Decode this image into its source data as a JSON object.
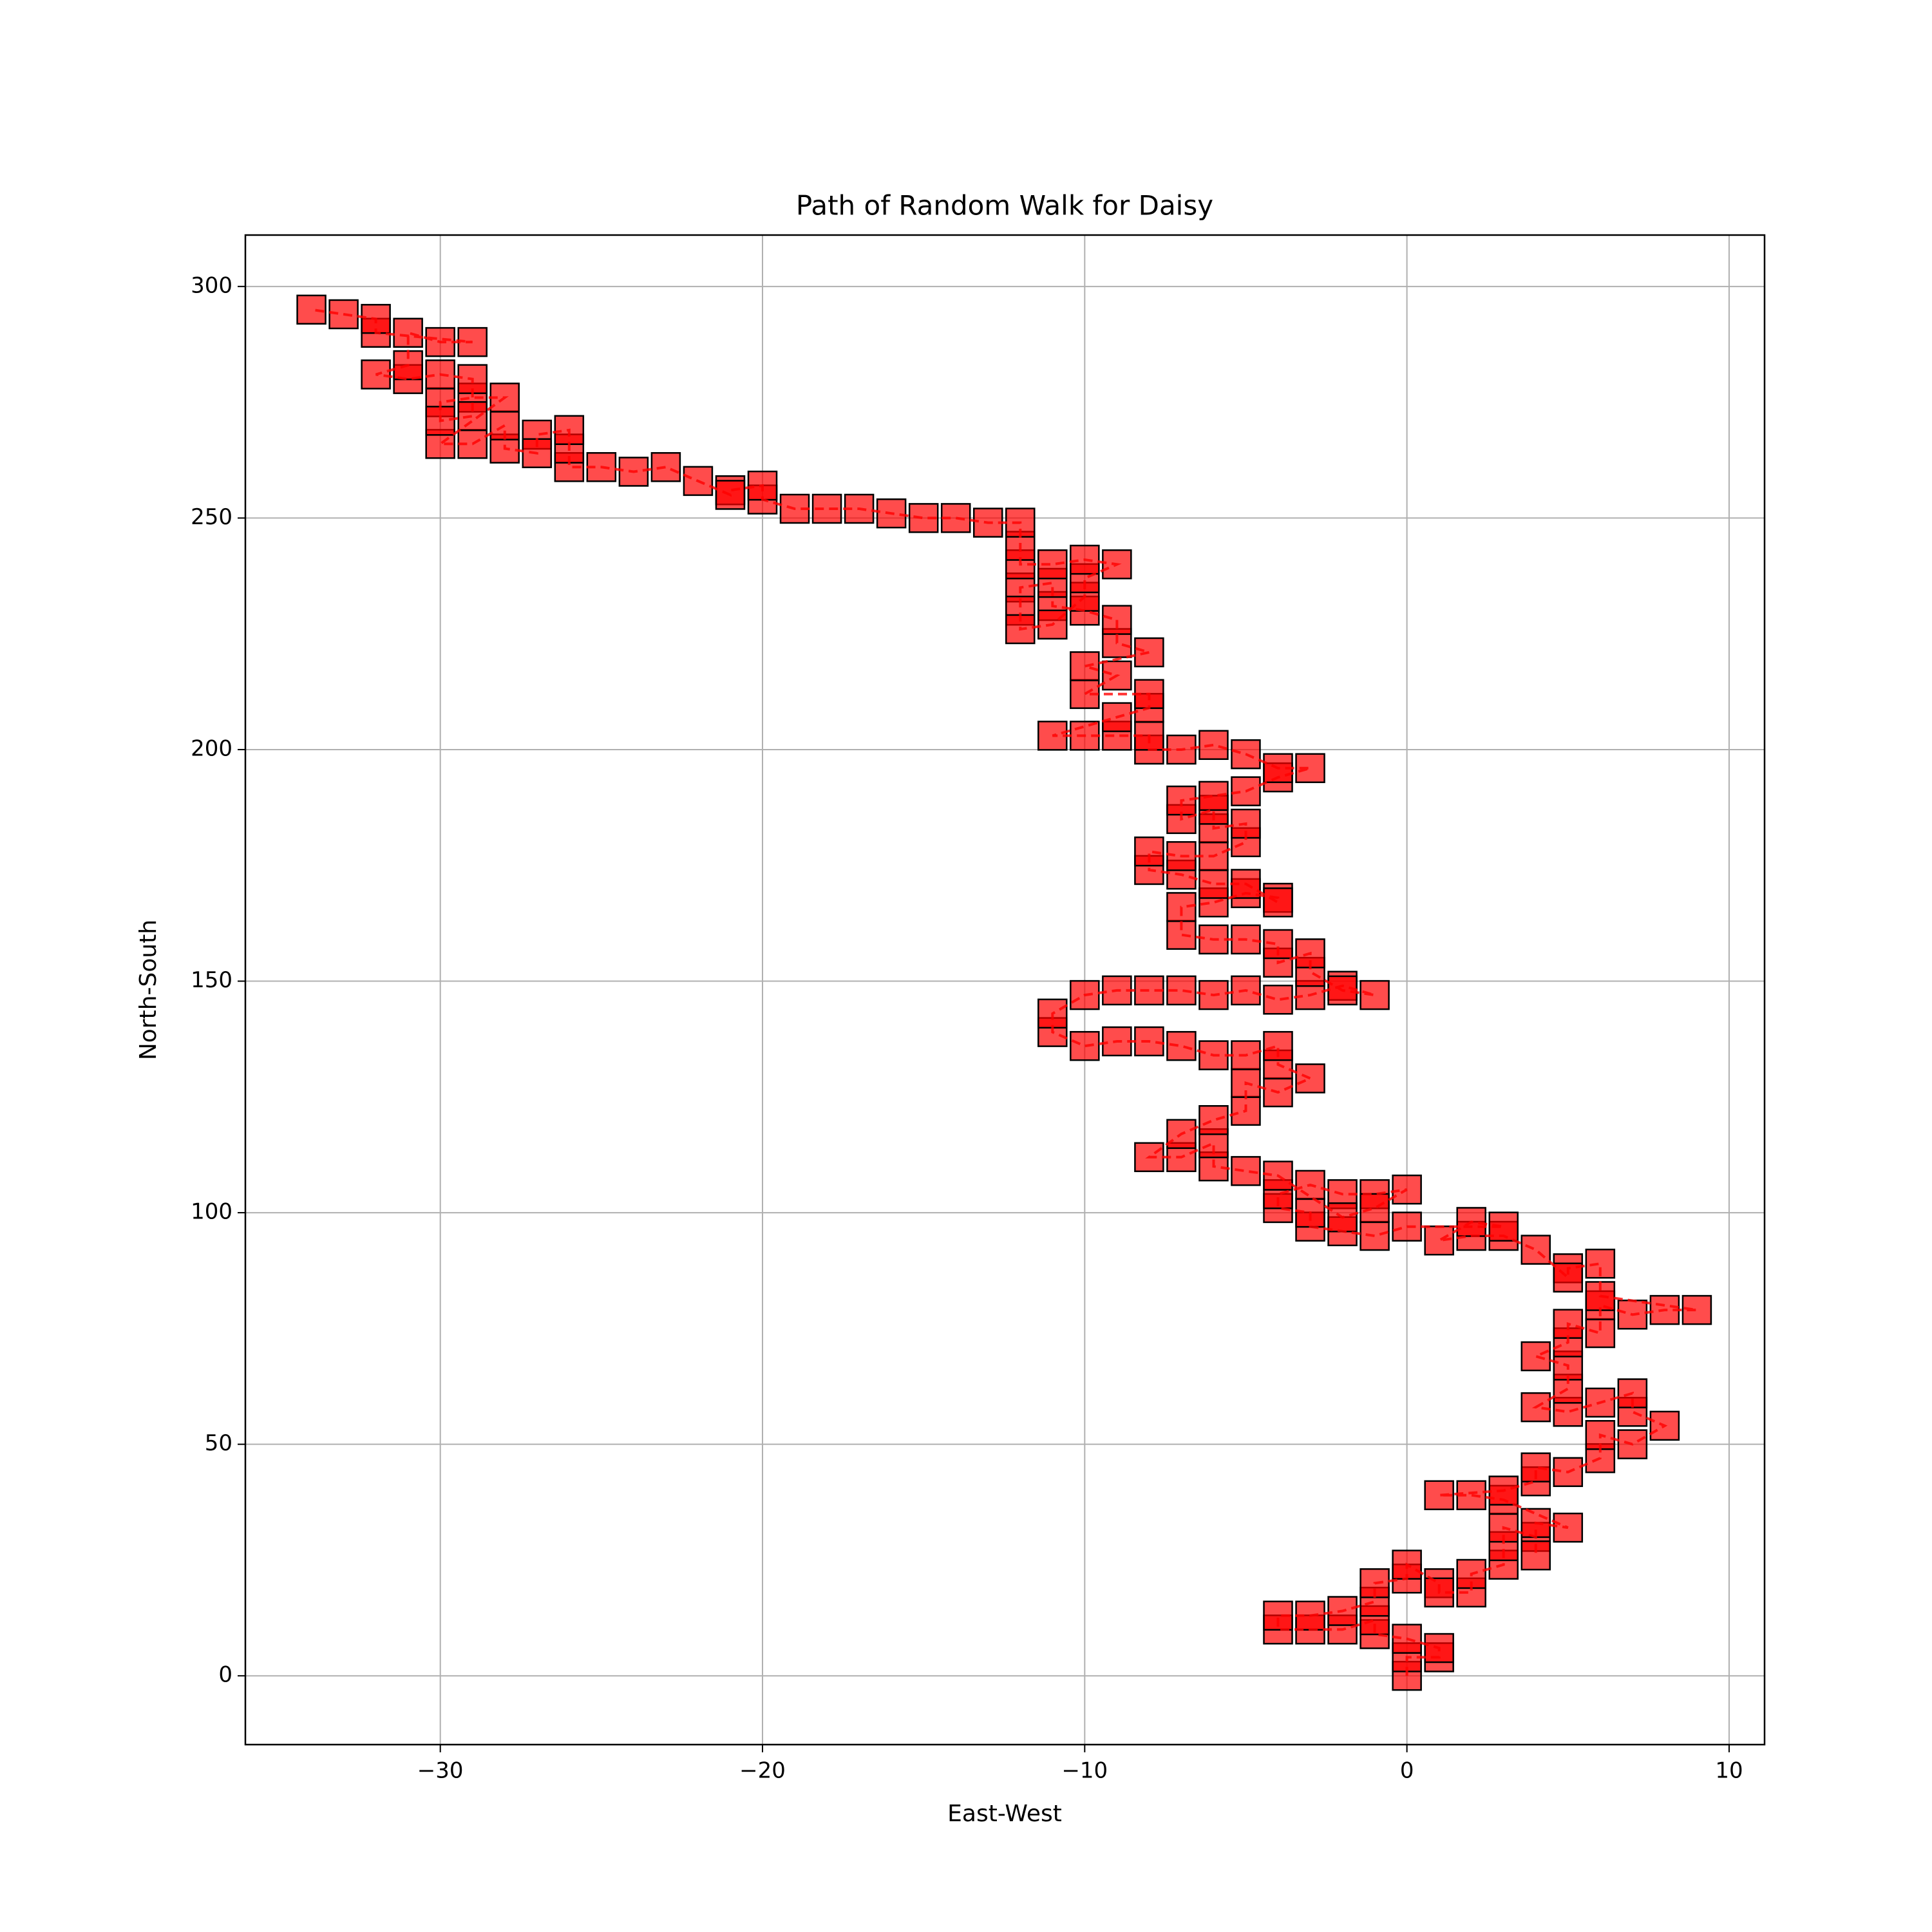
{
  "chart_data": {
    "type": "scatter",
    "title": "Path of Random Walk for Daisy",
    "xlabel": "East-West",
    "ylabel": "North-South",
    "color": "#ff0000",
    "edge_color": "#000000",
    "grid": true,
    "xlim": [
      -36.05,
      11.1
    ],
    "ylim": [
      -14.85,
      311.1
    ],
    "xticks": [
      {
        "value": -30,
        "label": "−30"
      },
      {
        "value": -20,
        "label": "−20"
      },
      {
        "value": -10,
        "label": "−10"
      },
      0,
      10
    ],
    "yticks": [
      0,
      50,
      100,
      150,
      200,
      250,
      300
    ],
    "x": [
      0,
      0,
      1,
      1,
      0,
      -1,
      -1,
      -2,
      -3,
      -4,
      -4,
      -3,
      -2,
      -1,
      -1,
      0,
      0,
      1,
      1,
      2,
      2,
      3,
      3,
      3,
      4,
      4,
      4,
      5,
      3,
      2,
      1,
      3,
      4,
      4,
      5,
      6,
      6,
      7,
      8,
      7,
      7,
      6,
      5,
      4,
      5,
      5,
      4,
      5,
      5,
      6,
      6,
      7,
      8,
      9,
      6,
      6,
      5,
      5,
      4,
      3,
      2,
      1,
      2,
      3,
      0,
      -1,
      -2,
      -3,
      -3,
      -4,
      -4,
      -3,
      -2,
      -1,
      0,
      -1,
      -2,
      -4,
      -5,
      -6,
      -6,
      -7,
      -8,
      -7,
      -6,
      -5,
      -5,
      -4,
      -3,
      -4,
      -4,
      -5,
      -6,
      -7,
      -8,
      -9,
      -10,
      -11,
      -11,
      -10,
      -9,
      -8,
      -7,
      -6,
      -5,
      -4,
      -3,
      -2,
      -1,
      -2,
      -3,
      -3,
      -4,
      -4,
      -5,
      -6,
      -7,
      -7,
      -6,
      -5,
      -4,
      -4,
      -5,
      -6,
      -7,
      -8,
      -8,
      -7,
      -6,
      -5,
      -5,
      -6,
      -6,
      -7,
      -7,
      -6,
      -5,
      -4,
      -3,
      -4,
      -5,
      -6,
      -7,
      -8,
      -8,
      -9,
      -10,
      -11,
      -9,
      -8,
      -8,
      -10,
      -9,
      -10,
      -8,
      -9,
      -9,
      -10,
      -11,
      -11,
      -12,
      -12,
      -12,
      -11,
      -10,
      -10,
      -9,
      -10,
      -11,
      -12,
      -12,
      -12,
      -13,
      -14,
      -15,
      -16,
      -17,
      -18,
      -19,
      -20,
      -20,
      -21,
      -21,
      -22,
      -23,
      -24,
      -25,
      -26,
      -26,
      -26,
      -27,
      -27,
      -28,
      -28,
      -29,
      -30,
      -28,
      -29,
      -30,
      -30,
      -29,
      -29,
      -30,
      -31,
      -32,
      -31,
      -31,
      -30,
      -29,
      -32,
      -32,
      -33,
      -34
    ],
    "values": [
      0,
      4,
      4,
      6,
      8,
      9,
      12,
      10,
      10,
      10,
      13,
      13,
      14,
      16,
      20,
      21,
      24,
      20,
      18,
      18,
      22,
      24,
      28,
      32,
      30,
      26,
      33,
      32,
      38,
      39,
      39,
      40,
      42,
      45,
      44,
      47,
      52,
      50,
      54,
      57,
      61,
      59,
      57,
      58,
      62,
      67,
      69,
      72,
      76,
      74,
      80,
      78,
      79,
      79,
      82,
      89,
      88,
      86,
      92,
      95,
      95,
      94,
      98,
      97,
      97,
      95,
      96,
      97,
      100,
      101,
      104,
      106,
      104,
      104,
      105,
      101,
      99,
      108,
      109,
      110,
      115,
      112,
      112,
      117,
      120,
      122,
      128,
      126,
      129,
      132,
      136,
      134,
      134,
      136,
      137,
      137,
      136,
      139,
      143,
      147,
      148,
      148,
      148,
      147,
      148,
      146,
      147,
      149,
      147,
      148,
      152,
      156,
      154,
      158,
      159,
      159,
      160,
      166,
      167,
      169,
      168,
      167,
      171,
      171,
      173,
      174,
      178,
      177,
      177,
      180,
      184,
      183,
      187,
      185,
      189,
      190,
      191,
      194,
      196,
      196,
      199,
      201,
      200,
      200,
      203,
      203,
      203,
      203,
      207,
      209,
      212,
      212,
      216,
      218,
      221,
      223,
      228,
      230,
      231,
      236,
      235,
      230,
      226,
      227,
      233,
      237,
      240,
      241,
      240,
      240,
      244,
      249,
      249,
      250,
      250,
      251,
      252,
      252,
      252,
      254,
      257,
      256,
      255,
      258,
      261,
      260,
      261,
      261,
      265,
      269,
      268,
      264,
      265,
      270,
      266,
      266,
      276,
      276,
      275,
      271,
      272,
      280,
      281,
      280,
      281,
      283,
      290,
      288,
      288,
      290,
      293,
      294,
      295
    ]
  }
}
